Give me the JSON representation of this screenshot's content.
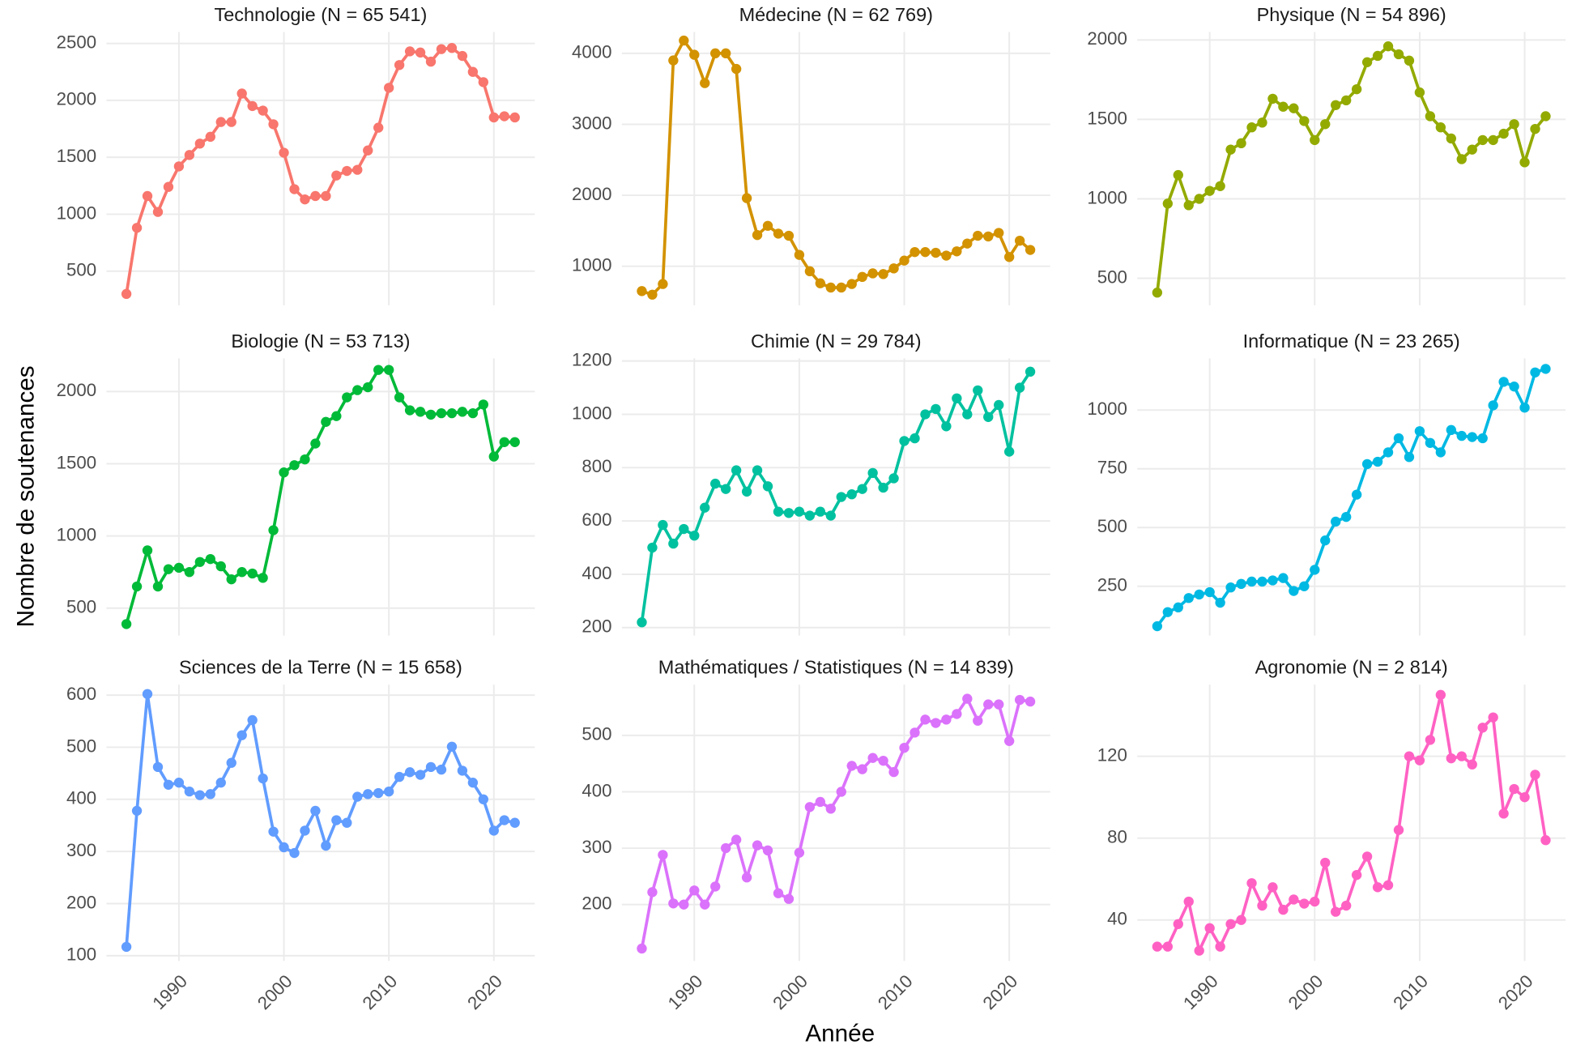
{
  "xlabel": "Année",
  "ylabel": "Nombre de soutenances",
  "chart_data": [
    {
      "type": "line",
      "title": "Technologie (N = 65 541)",
      "color": "#F8766D",
      "xlim": [
        1983.1,
        2023.9
      ],
      "xticks": [
        1990,
        2000,
        2010,
        2020
      ],
      "ylim": [
        200,
        2600
      ],
      "yticks": [
        500,
        1000,
        1500,
        2000,
        2500
      ],
      "x": [
        1985,
        1986,
        1987,
        1988,
        1989,
        1990,
        1991,
        1992,
        1993,
        1994,
        1995,
        1996,
        1997,
        1998,
        1999,
        2000,
        2001,
        2002,
        2003,
        2004,
        2005,
        2006,
        2007,
        2008,
        2009,
        2010,
        2011,
        2012,
        2013,
        2014,
        2015,
        2016,
        2017,
        2018,
        2019,
        2020,
        2021,
        2022
      ],
      "values": [
        300,
        880,
        1160,
        1020,
        1240,
        1420,
        1520,
        1620,
        1680,
        1810,
        1810,
        2060,
        1950,
        1910,
        1790,
        1540,
        1220,
        1130,
        1160,
        1160,
        1340,
        1380,
        1390,
        1560,
        1760,
        2110,
        2310,
        2430,
        2420,
        2340,
        2450,
        2460,
        2390,
        2250,
        2160,
        1850,
        1860,
        1850
      ]
    },
    {
      "type": "line",
      "title": "Médecine (N = 62 769)",
      "color": "#D39200",
      "xlim": [
        1983.1,
        2023.9
      ],
      "xticks": [
        1990,
        2000,
        2010,
        2020
      ],
      "ylim": [
        450,
        4300
      ],
      "yticks": [
        1000,
        2000,
        3000,
        4000
      ],
      "x": [
        1985,
        1986,
        1987,
        1988,
        1989,
        1990,
        1991,
        1992,
        1993,
        1994,
        1995,
        1996,
        1997,
        1998,
        1999,
        2000,
        2001,
        2002,
        2003,
        2004,
        2005,
        2006,
        2007,
        2008,
        2009,
        2010,
        2011,
        2012,
        2013,
        2014,
        2015,
        2016,
        2017,
        2018,
        2019,
        2020,
        2021,
        2022
      ],
      "values": [
        650,
        600,
        750,
        3900,
        4180,
        3980,
        3580,
        4000,
        4000,
        3780,
        1960,
        1440,
        1570,
        1460,
        1430,
        1160,
        930,
        760,
        700,
        700,
        750,
        850,
        900,
        890,
        970,
        1080,
        1200,
        1200,
        1190,
        1150,
        1210,
        1320,
        1430,
        1420,
        1470,
        1130,
        1360,
        1230
      ]
    },
    {
      "type": "line",
      "title": "Physique (N = 54 896)",
      "color": "#93AA00",
      "xlim": [
        1983.1,
        2023.9
      ],
      "xticks": [
        1990,
        2000,
        2010,
        2020
      ],
      "ylim": [
        330,
        2050
      ],
      "yticks": [
        500,
        1000,
        1500,
        2000
      ],
      "x": [
        1985,
        1986,
        1987,
        1988,
        1989,
        1990,
        1991,
        1992,
        1993,
        1994,
        1995,
        1996,
        1997,
        1998,
        1999,
        2000,
        2001,
        2002,
        2003,
        2004,
        2005,
        2006,
        2007,
        2008,
        2009,
        2010,
        2011,
        2012,
        2013,
        2014,
        2015,
        2016,
        2017,
        2018,
        2019,
        2020,
        2021,
        2022
      ],
      "values": [
        410,
        970,
        1150,
        960,
        1000,
        1050,
        1080,
        1310,
        1350,
        1450,
        1480,
        1630,
        1580,
        1570,
        1490,
        1370,
        1470,
        1590,
        1620,
        1690,
        1860,
        1900,
        1960,
        1910,
        1870,
        1670,
        1520,
        1450,
        1380,
        1250,
        1310,
        1370,
        1370,
        1410,
        1470,
        1230,
        1440,
        1520
      ]
    },
    {
      "type": "line",
      "title": "Biologie (N = 53 713)",
      "color": "#00BA38",
      "xlim": [
        1983.1,
        2023.9
      ],
      "xticks": [
        1990,
        2000,
        2010,
        2020
      ],
      "ylim": [
        310,
        2230
      ],
      "yticks": [
        500,
        1000,
        1500,
        2000
      ],
      "x": [
        1985,
        1986,
        1987,
        1988,
        1989,
        1990,
        1991,
        1992,
        1993,
        1994,
        1995,
        1996,
        1997,
        1998,
        1999,
        2000,
        2001,
        2002,
        2003,
        2004,
        2005,
        2006,
        2007,
        2008,
        2009,
        2010,
        2011,
        2012,
        2013,
        2014,
        2015,
        2016,
        2017,
        2018,
        2019,
        2020,
        2021,
        2022
      ],
      "values": [
        390,
        650,
        900,
        650,
        770,
        780,
        750,
        820,
        840,
        790,
        700,
        750,
        740,
        710,
        1040,
        1440,
        1490,
        1530,
        1640,
        1790,
        1830,
        1960,
        2010,
        2030,
        2150,
        2150,
        1960,
        1870,
        1860,
        1840,
        1850,
        1850,
        1860,
        1850,
        1910,
        1550,
        1650,
        1650
      ]
    },
    {
      "type": "line",
      "title": "Chimie (N = 29 784)",
      "color": "#00C19F",
      "xlim": [
        1983.1,
        2023.9
      ],
      "xticks": [
        1990,
        2000,
        2010,
        2020
      ],
      "ylim": [
        170,
        1210
      ],
      "yticks": [
        200,
        400,
        600,
        800,
        1000,
        1200
      ],
      "x": [
        1985,
        1986,
        1987,
        1988,
        1989,
        1990,
        1991,
        1992,
        1993,
        1994,
        1995,
        1996,
        1997,
        1998,
        1999,
        2000,
        2001,
        2002,
        2003,
        2004,
        2005,
        2006,
        2007,
        2008,
        2009,
        2010,
        2011,
        2012,
        2013,
        2014,
        2015,
        2016,
        2017,
        2018,
        2019,
        2020,
        2021,
        2022
      ],
      "values": [
        220,
        500,
        585,
        515,
        570,
        545,
        650,
        740,
        720,
        790,
        710,
        790,
        730,
        635,
        630,
        635,
        620,
        635,
        620,
        690,
        700,
        720,
        780,
        725,
        760,
        900,
        910,
        1000,
        1020,
        955,
        1060,
        1000,
        1090,
        990,
        1035,
        860,
        1100,
        1160
      ]
    },
    {
      "type": "line",
      "title": "Informatique (N = 23 265)",
      "color": "#00B9E3",
      "xlim": [
        1983.1,
        2023.9
      ],
      "xticks": [
        1990,
        2000,
        2010,
        2020
      ],
      "ylim": [
        40,
        1220
      ],
      "yticks": [
        250,
        500,
        750,
        1000
      ],
      "x": [
        1985,
        1986,
        1987,
        1988,
        1989,
        1990,
        1991,
        1992,
        1993,
        1994,
        1995,
        1996,
        1997,
        1998,
        1999,
        2000,
        2001,
        2002,
        2003,
        2004,
        2005,
        2006,
        2007,
        2008,
        2009,
        2010,
        2011,
        2012,
        2013,
        2014,
        2015,
        2016,
        2017,
        2018,
        2019,
        2020,
        2021,
        2022
      ],
      "values": [
        80,
        140,
        160,
        200,
        215,
        225,
        180,
        245,
        260,
        270,
        270,
        275,
        285,
        230,
        250,
        320,
        445,
        525,
        545,
        640,
        770,
        780,
        820,
        880,
        800,
        910,
        860,
        820,
        915,
        890,
        885,
        880,
        1020,
        1120,
        1100,
        1010,
        1160,
        1175
      ]
    },
    {
      "type": "line",
      "title": "Sciences de la Terre (N = 15 658)",
      "color": "#619CFF",
      "xlim": [
        1983.1,
        2023.9
      ],
      "xticks": [
        1990,
        2000,
        2010,
        2020
      ],
      "ylim": [
        90,
        620
      ],
      "yticks": [
        100,
        200,
        300,
        400,
        500,
        600
      ],
      "x": [
        1985,
        1986,
        1987,
        1988,
        1989,
        1990,
        1991,
        1992,
        1993,
        1994,
        1995,
        1996,
        1997,
        1998,
        1999,
        2000,
        2001,
        2002,
        2003,
        2004,
        2005,
        2006,
        2007,
        2008,
        2009,
        2010,
        2011,
        2012,
        2013,
        2014,
        2015,
        2016,
        2017,
        2018,
        2019,
        2020,
        2021,
        2022
      ],
      "values": [
        117,
        378,
        602,
        462,
        428,
        432,
        415,
        408,
        410,
        432,
        470,
        523,
        552,
        440,
        338,
        308,
        297,
        340,
        378,
        311,
        360,
        355,
        405,
        410,
        412,
        415,
        443,
        452,
        447,
        462,
        457,
        501,
        455,
        432,
        400,
        340,
        360,
        355
      ]
    },
    {
      "type": "line",
      "title": "Mathématiques / Statistiques (N = 14 839)",
      "color": "#DB72FB",
      "xlim": [
        1983.1,
        2023.9
      ],
      "xticks": [
        1990,
        2000,
        2010,
        2020
      ],
      "ylim": [
        100,
        590
      ],
      "yticks": [
        200,
        300,
        400,
        500
      ],
      "x": [
        1985,
        1986,
        1987,
        1988,
        1989,
        1990,
        1991,
        1992,
        1993,
        1994,
        1995,
        1996,
        1997,
        1998,
        1999,
        2000,
        2001,
        2002,
        2003,
        2004,
        2005,
        2006,
        2007,
        2008,
        2009,
        2010,
        2011,
        2012,
        2013,
        2014,
        2015,
        2016,
        2017,
        2018,
        2019,
        2020,
        2021,
        2022
      ],
      "values": [
        122,
        222,
        288,
        202,
        200,
        225,
        200,
        232,
        300,
        315,
        248,
        305,
        296,
        220,
        210,
        292,
        373,
        382,
        370,
        400,
        446,
        440,
        460,
        455,
        435,
        478,
        505,
        528,
        522,
        528,
        538,
        565,
        526,
        555,
        555,
        490,
        563,
        560
      ]
    },
    {
      "type": "line",
      "title": "Agronomie (N =  2 814)",
      "color": "#FF61C3",
      "xlim": [
        1983.1,
        2023.9
      ],
      "xticks": [
        1990,
        2000,
        2010,
        2020
      ],
      "ylim": [
        20,
        155
      ],
      "yticks": [
        40,
        80,
        120
      ],
      "x": [
        1985,
        1986,
        1987,
        1988,
        1989,
        1990,
        1991,
        1992,
        1993,
        1994,
        1995,
        1996,
        1997,
        1998,
        1999,
        2000,
        2001,
        2002,
        2003,
        2004,
        2005,
        2006,
        2007,
        2008,
        2009,
        2010,
        2011,
        2012,
        2013,
        2014,
        2015,
        2016,
        2017,
        2018,
        2019,
        2020,
        2021,
        2022
      ],
      "values": [
        27,
        27,
        38,
        49,
        25,
        36,
        27,
        38,
        40,
        58,
        47,
        56,
        45,
        50,
        48,
        49,
        68,
        44,
        47,
        62,
        71,
        56,
        57,
        84,
        120,
        118,
        128,
        150,
        119,
        120,
        116,
        134,
        139,
        92,
        104,
        100,
        111,
        79
      ]
    }
  ]
}
